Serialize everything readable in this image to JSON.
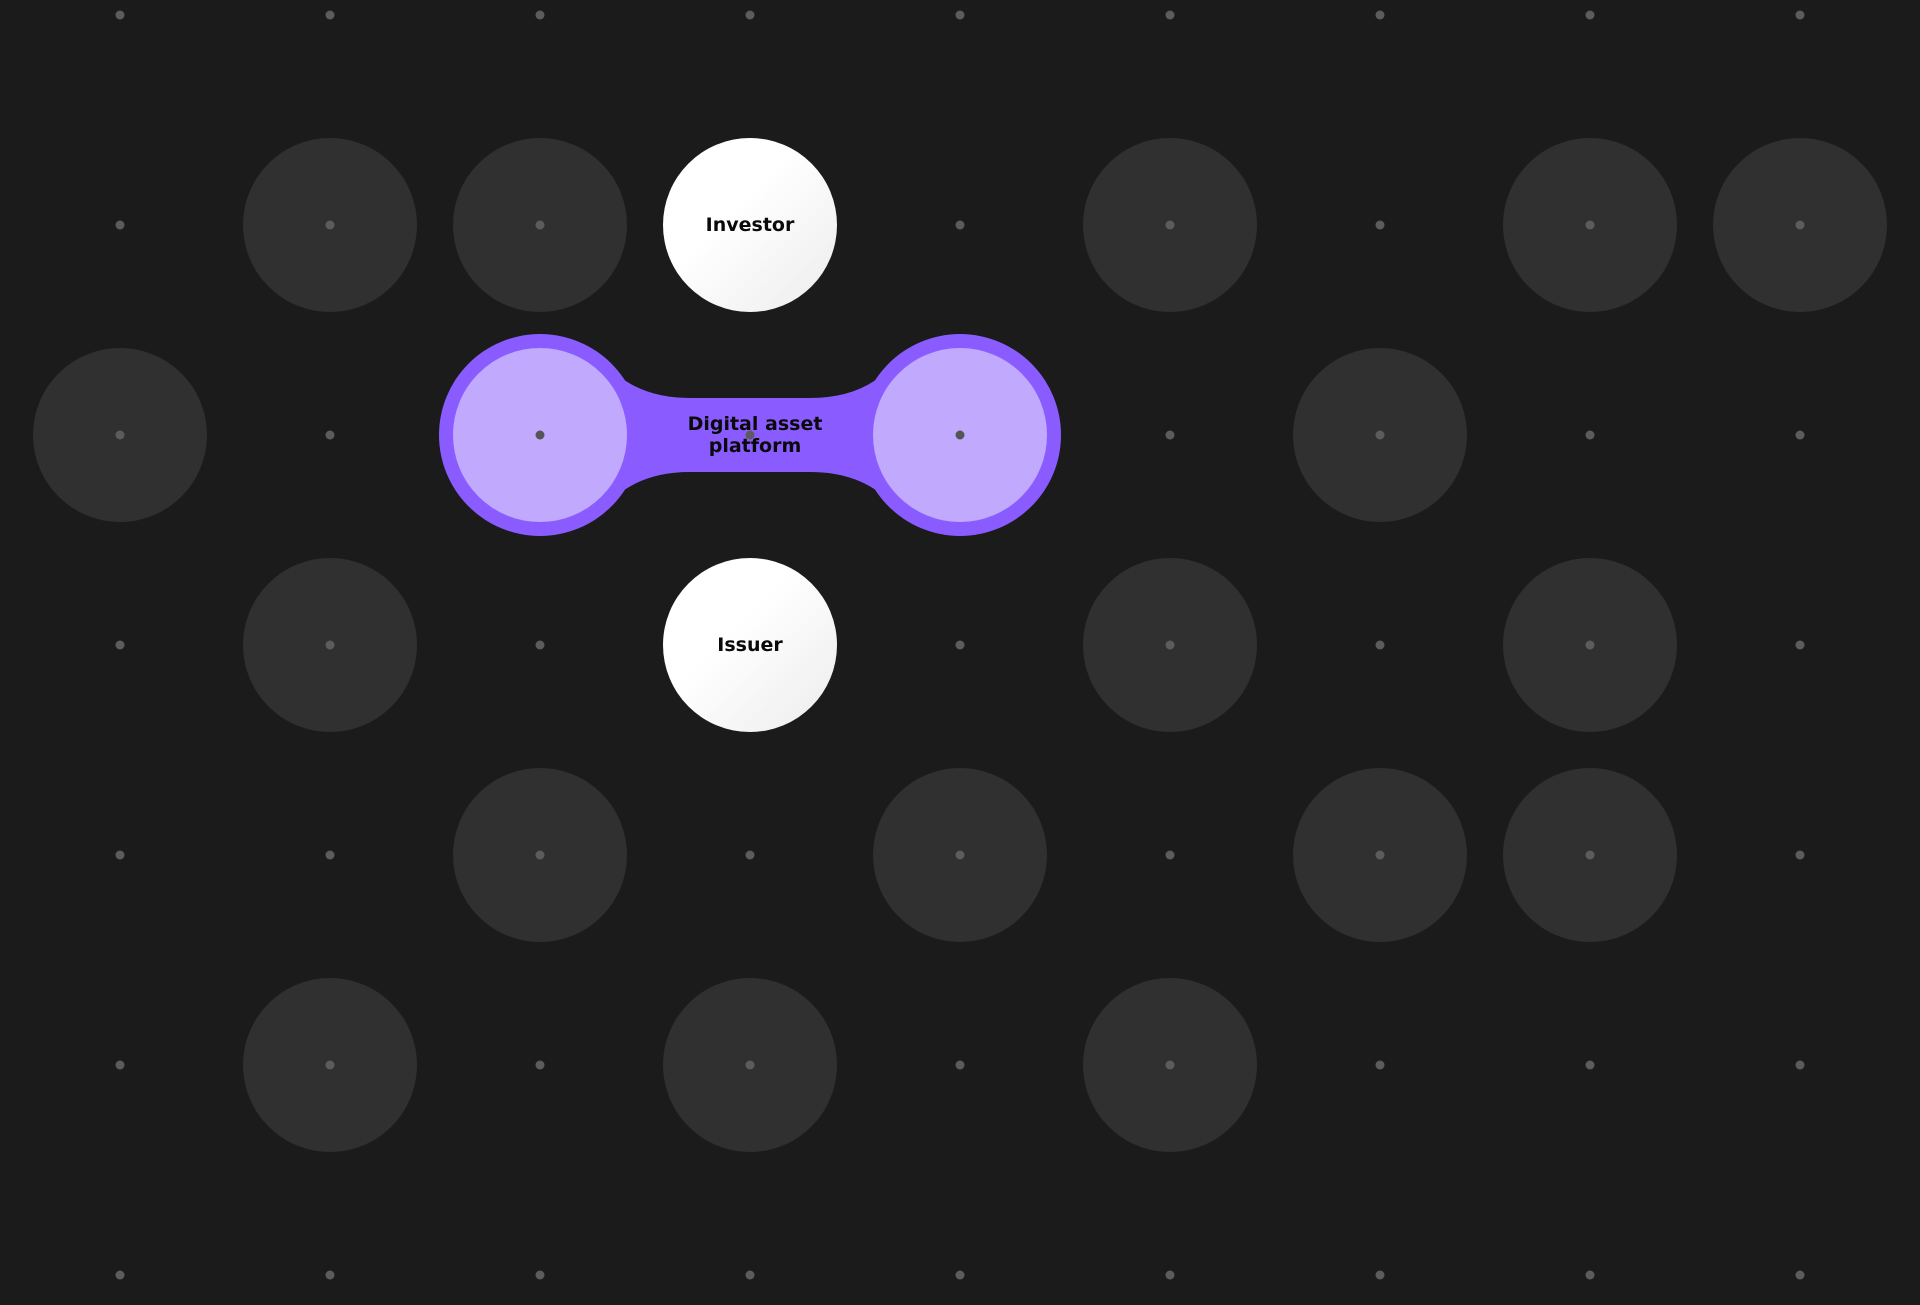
{
  "nodes": {
    "investor": "Investor",
    "issuer": "Issuer",
    "platform_line1": "Digital asset",
    "platform_line2": "platform"
  },
  "colors": {
    "background": "#1b1b1b",
    "inactive_circle": "#303030",
    "grid_dot": "#5c5c5c",
    "platform_outer": "#8a5cff",
    "platform_inner": "#c1aafd",
    "node_white": "#ffffff"
  }
}
